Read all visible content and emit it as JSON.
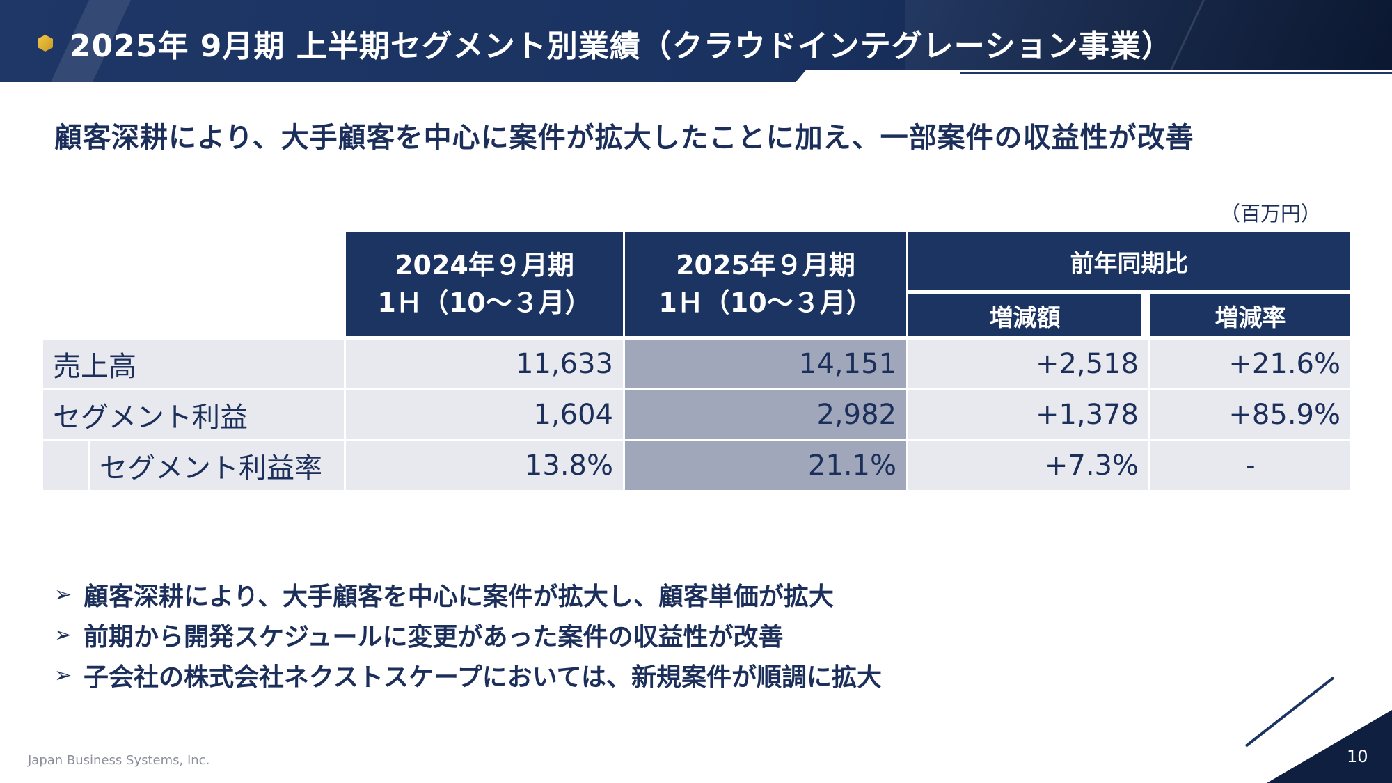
{
  "header": {
    "title": "2025年 9月期 上半期セグメント別業績（クラウドインテグレーション事業）",
    "icon": "cube-bullet-icon"
  },
  "headline": "顧客深耕により、大手顧客を中心に案件が拡大したことに加え、一部案件の収益性が改善",
  "unit": "（百万円）",
  "table": {
    "col_prev": {
      "line1": "2024年９月期",
      "line2": "1Ｈ（10～３月）"
    },
    "col_curr": {
      "line1": "2025年９月期",
      "line2": "1Ｈ（10～３月）"
    },
    "col_yoy": "前年同期比",
    "col_change": "増減額",
    "col_rate": "増減率",
    "rows": [
      {
        "label": "売上高",
        "prev": "11,633",
        "curr": "14,151",
        "change": "+2,518",
        "rate": "+21.6%"
      },
      {
        "label": "セグメント利益",
        "prev": "1,604",
        "curr": "2,982",
        "change": "+1,378",
        "rate": "+85.9%"
      },
      {
        "label": "セグメント利益率",
        "prev": "13.8%",
        "curr": "21.1%",
        "change": "+7.3%",
        "rate": "-"
      }
    ]
  },
  "bullets": [
    "顧客深耕により、大手顧客を中心に案件が拡大し、顧客単価が拡大",
    "前期から開発スケジュールに変更があった案件の収益性が改善",
    "子会社の株式会社ネクストスケープにおいては、新規案件が順調に拡大"
  ],
  "footer": {
    "company": "Japan Business Systems, Inc.",
    "page": "10"
  },
  "colors": {
    "navy": "#1b3461",
    "highlight": "#a1a7bb",
    "row_bg": "#e8e9ee",
    "accent_gold": "#e0b53a"
  }
}
